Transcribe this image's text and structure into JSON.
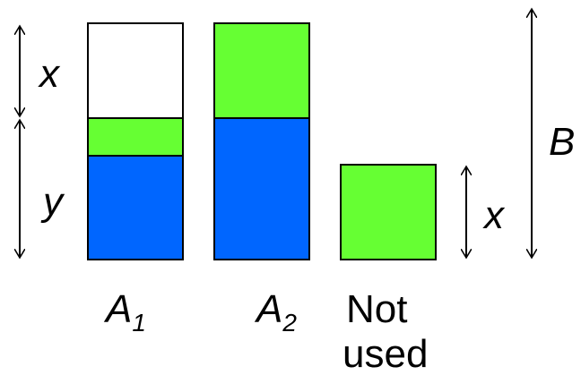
{
  "colors": {
    "blue": "#0066ff",
    "green": "#66ff33",
    "empty": "#ffffff",
    "stroke": "#000000"
  },
  "labels": {
    "x_top": "x",
    "y_left": "y",
    "b_right": "B",
    "x_right": "x",
    "a1_letter": "A",
    "a1_sub": "1",
    "a2_letter": "A",
    "a2_sub": "2",
    "not_used_line1": "Not",
    "not_used_line2": "used"
  }
}
